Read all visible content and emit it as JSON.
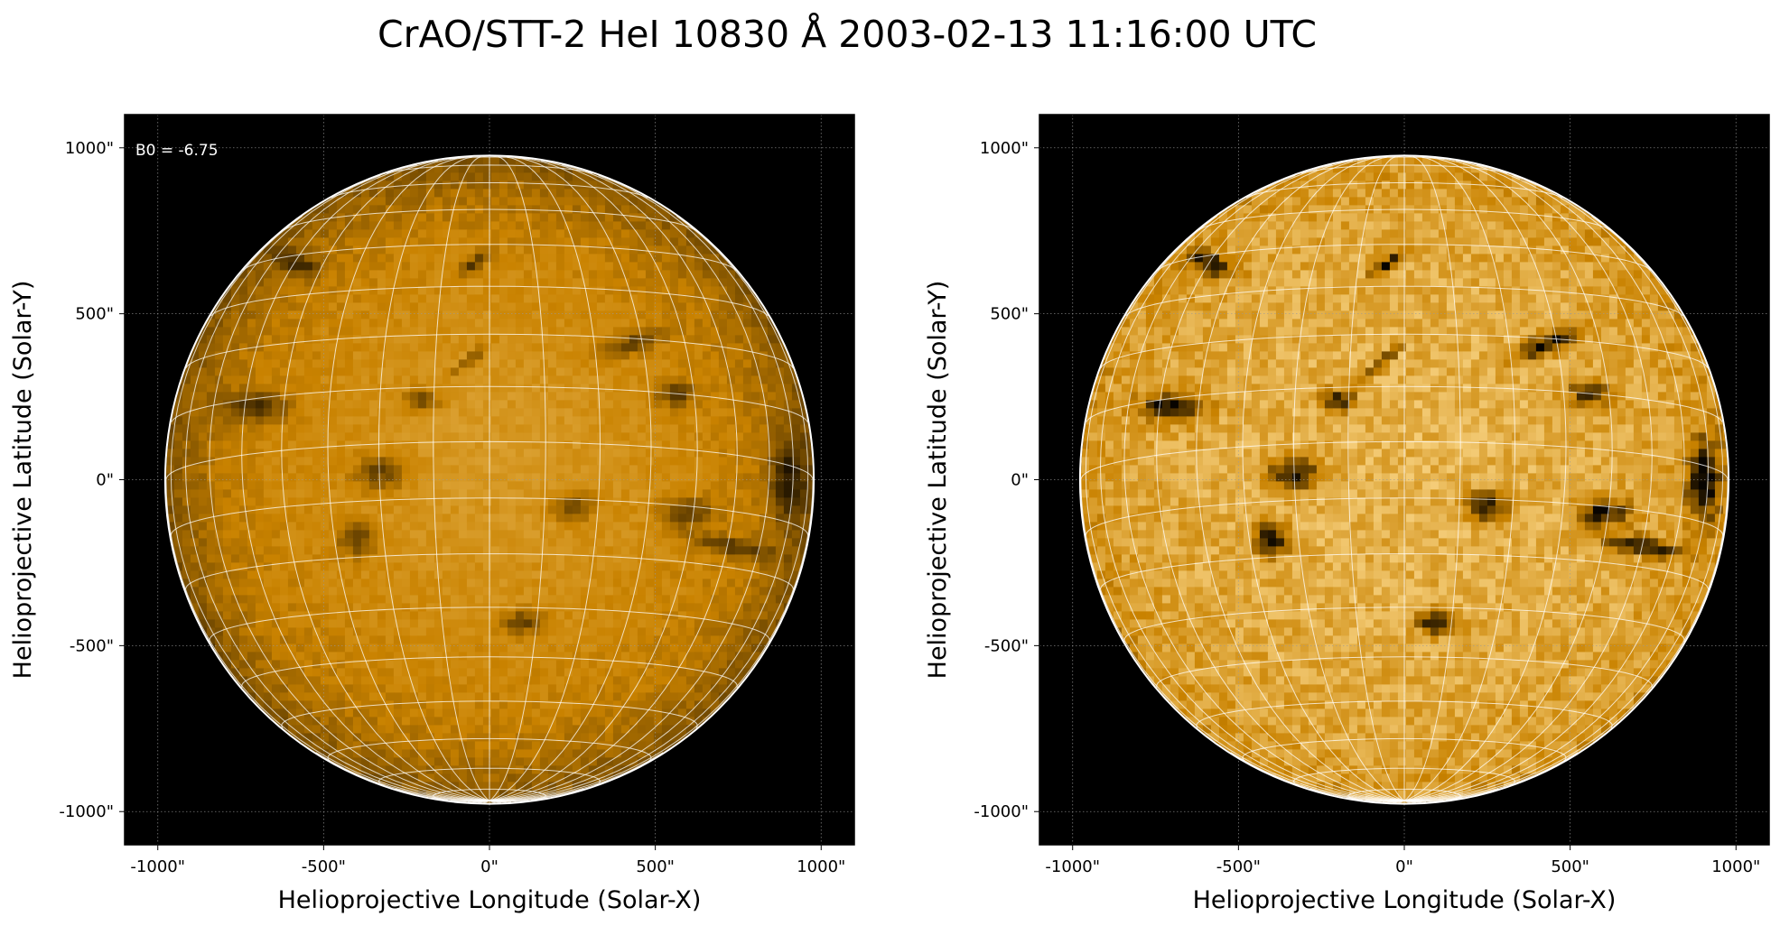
{
  "figure": {
    "title": "CrAO/STT-2 HeI 10830 Å 2003-02-13 11:16:00 UTC"
  },
  "colors": {
    "background": "#ffffff",
    "frame": "#000000",
    "disk_dark": "#3a2400",
    "disk_mid": "#c98200",
    "disk_bright": "#f6cf7c",
    "grid": "#ffffff",
    "text": "#000000"
  },
  "chart_data": [
    {
      "type": "heatmap",
      "image": "solar-disk-hei-10830",
      "colormap": "orange-on-black",
      "xlabel": "Helioprojective Longitude (Solar-X)",
      "ylabel": "Helioprojective Latitude (Solar-Y)",
      "xlim": [
        -1100,
        1100
      ],
      "ylim": [
        -1100,
        1100
      ],
      "xticks": [
        -1000,
        -500,
        0,
        500,
        1000
      ],
      "yticks": [
        -1000,
        -500,
        0,
        500,
        1000
      ],
      "xtick_labels": [
        "-1000\"",
        "-500\"",
        "0\"",
        "500\"",
        "1000\""
      ],
      "ytick_labels": [
        "-1000\"",
        "-500\"",
        "0\"",
        "500\"",
        "1000\""
      ],
      "solar_radius_arcsec": 975,
      "coordinate_grid": {
        "latitude_step_deg": 10,
        "longitude_step_deg": 10
      },
      "annotation": "B0 = -6.75",
      "contrast": "normal",
      "grid": true
    },
    {
      "type": "heatmap",
      "image": "solar-disk-hei-10830-enhanced",
      "colormap": "orange-on-black",
      "xlabel": "Helioprojective Longitude (Solar-X)",
      "ylabel": "Helioprojective Latitude (Solar-Y)",
      "xlim": [
        -1100,
        1100
      ],
      "ylim": [
        -1100,
        1100
      ],
      "xticks": [
        -1000,
        -500,
        0,
        500,
        1000
      ],
      "yticks": [
        -1000,
        -500,
        0,
        500,
        1000
      ],
      "xtick_labels": [
        "-1000\"",
        "-500\"",
        "0\"",
        "500\"",
        "1000\""
      ],
      "ytick_labels": [
        "-1000\"",
        "-500\"",
        "0\"",
        "500\"",
        "1000\""
      ],
      "solar_radius_arcsec": 975,
      "coordinate_grid": {
        "latitude_step_deg": 10,
        "longitude_step_deg": 10
      },
      "annotation": "",
      "contrast": "enhanced",
      "grid": true
    }
  ]
}
